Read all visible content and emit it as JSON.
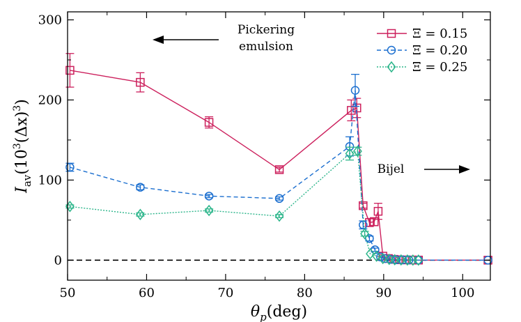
{
  "chart_data": {
    "type": "line",
    "title": "",
    "xlabel": "θp(deg)",
    "ylabel": "Iav(10^3(Δx)^3)",
    "xlabel_parts": {
      "var": "θ",
      "sub": "p",
      "rest": "(deg)"
    },
    "ylabel_parts": {
      "var": "I",
      "sub": "av",
      "pre": "(10",
      "sup1": "3",
      "mid": "(Δx)",
      "sup2": "3",
      "post": ")"
    },
    "xlim": [
      50,
      103.5
    ],
    "ylim": [
      -25,
      310
    ],
    "xticks": [
      50,
      60,
      70,
      80,
      90,
      100
    ],
    "yticks": [
      0,
      100,
      200,
      300
    ],
    "grid": false,
    "legend_position": "top-right",
    "series": [
      {
        "name": "Ξ = 0.15",
        "color": "#cc1f5c",
        "marker": "square",
        "dash": "solid",
        "x": [
          50.3,
          59.2,
          67.9,
          76.8,
          85.9,
          86.6,
          87.4,
          88.2,
          88.8,
          89.3,
          89.9,
          90.6,
          91.3,
          92.0,
          92.8,
          93.6,
          94.4,
          103.2
        ],
        "y": [
          237,
          222,
          172,
          113,
          187,
          190,
          68,
          47,
          48,
          61,
          5,
          2,
          1,
          0.5,
          0.3,
          0.2,
          0.1,
          0
        ],
        "err": [
          21,
          12,
          7,
          3,
          13,
          12,
          3,
          5,
          5,
          10,
          2,
          1,
          0.5,
          0.3,
          0.2,
          0.2,
          0.1,
          0
        ]
      },
      {
        "name": "Ξ = 0.20",
        "color": "#1a6ecf",
        "marker": "circle",
        "dash": "6,4",
        "x": [
          50.3,
          59.2,
          67.9,
          76.8,
          85.7,
          86.4,
          87.4,
          88.2,
          88.9,
          89.6,
          90.2,
          90.9,
          91.6,
          92.4,
          93.2,
          94.4,
          103.2
        ],
        "y": [
          116,
          91,
          80,
          77,
          142,
          212,
          44,
          27,
          13,
          4,
          2,
          1,
          0.5,
          0.3,
          0.2,
          0.1,
          0
        ],
        "err": [
          5,
          3,
          2,
          2,
          12,
          20,
          5,
          3,
          2,
          1,
          0.5,
          0.3,
          0.2,
          0.1,
          0.1,
          0.1,
          0
        ]
      },
      {
        "name": "Ξ = 0.25",
        "color": "#2bb58a",
        "marker": "diamond",
        "dash": "2,2",
        "x": [
          50.3,
          59.2,
          67.9,
          76.8,
          85.7,
          86.7,
          87.6,
          88.3,
          89.1,
          89.9,
          90.7,
          91.4,
          92.2,
          93.0,
          93.7,
          94.4
        ],
        "y": [
          67,
          57,
          62,
          55,
          133,
          136,
          33,
          8,
          5,
          2,
          1,
          0.5,
          0.3,
          0.2,
          0.1,
          0.1
        ],
        "err": [
          2,
          2,
          2,
          2,
          8,
          5,
          3,
          1,
          1,
          0.5,
          0.3,
          0.2,
          0.1,
          0.1,
          0.1,
          0.1
        ]
      }
    ],
    "zero_line": {
      "y": 0,
      "style": "dashed",
      "color": "#000000"
    },
    "annotations": [
      {
        "lines": [
          "Pickering",
          "emulsion"
        ],
        "arrow": "left",
        "x": 74,
        "y": 272
      },
      {
        "lines": [
          "Bijel"
        ],
        "arrow": "right",
        "x": 89,
        "y": 114
      }
    ]
  }
}
